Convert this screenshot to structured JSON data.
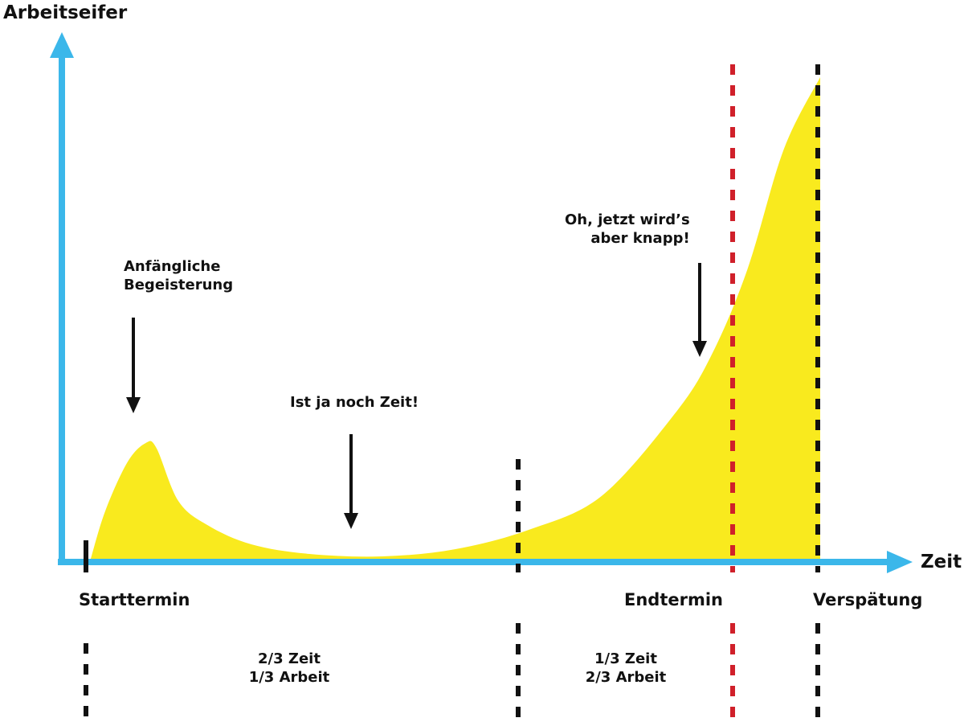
{
  "axes": {
    "y_label": "Arbeitseifer",
    "x_label": "Zeit",
    "axis_color": "#3bb7ea"
  },
  "curve": {
    "fill_color": "#f9ea1e",
    "x": [
      0.0,
      0.02,
      0.05,
      0.075,
      0.09,
      0.12,
      0.16,
      0.22,
      0.3,
      0.4,
      0.5,
      0.6,
      0.7,
      0.8,
      0.85,
      0.9,
      0.95,
      1.0
    ],
    "y": [
      0.0,
      0.1,
      0.2,
      0.24,
      0.23,
      0.12,
      0.07,
      0.03,
      0.01,
      0.005,
      0.02,
      0.06,
      0.13,
      0.3,
      0.42,
      0.6,
      0.85,
      1.0
    ]
  },
  "markers": [
    {
      "name": "Starttermin",
      "label": "Starttermin",
      "color": "#111111"
    },
    {
      "name": "two-thirds",
      "label": "",
      "color": "#111111"
    },
    {
      "name": "Endtermin",
      "label": "Endtermin",
      "color": "#d0202a"
    },
    {
      "name": "Verspätung",
      "label": "Verspätung",
      "color": "#111111"
    }
  ],
  "annotations": [
    {
      "name": "anfangliche-begeisterung",
      "lines": [
        "Anfängliche",
        "Begeisterung"
      ]
    },
    {
      "name": "ist-ja-noch-zeit",
      "lines": [
        "Ist ja noch Zeit!"
      ]
    },
    {
      "name": "jetzt-wirds-knapp",
      "lines": [
        "Oh, jetzt wird’s",
        "aber knapp!"
      ]
    }
  ],
  "phases": [
    {
      "name": "phase-one",
      "time": "2/3 Zeit",
      "work": "1/3 Arbeit"
    },
    {
      "name": "phase-two",
      "time": "1/3 Zeit",
      "work": "2/3 Arbeit"
    }
  ]
}
